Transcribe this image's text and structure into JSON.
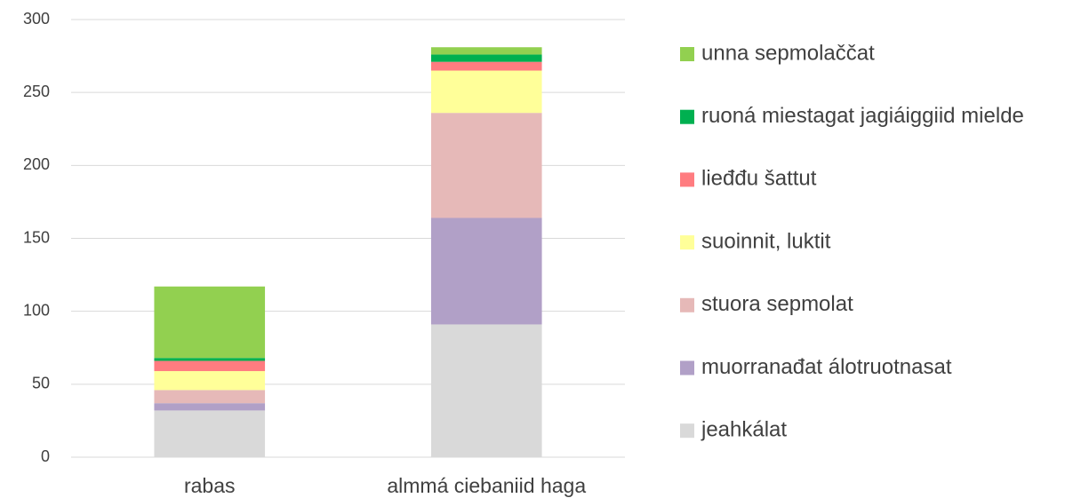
{
  "chart_data": {
    "type": "stacked_bar",
    "categories": [
      "rabas",
      "almmá ciebaniid haga"
    ],
    "series": [
      {
        "name": "jeahkálat",
        "color": "#d9d9d9",
        "values": [
          32,
          91
        ]
      },
      {
        "name": "muorranađat álotruotnasat",
        "color": "#b1a0c7",
        "values": [
          5,
          73
        ]
      },
      {
        "name": "stuora sepmolat",
        "color": "#e6b9b8",
        "values": [
          9,
          72
        ]
      },
      {
        "name": "suoinnit, luktit",
        "color": "#ffff99",
        "values": [
          13,
          29
        ]
      },
      {
        "name": "lieđđu šattut",
        "color": "#ff7c80",
        "values": [
          7,
          6
        ]
      },
      {
        "name": "ruoná miestagat jagiáiggiid mielde",
        "color": "#00b050",
        "values": [
          2,
          5
        ]
      },
      {
        "name": "unna sepmolaččat",
        "color": "#92d050",
        "values": [
          49,
          5
        ]
      }
    ],
    "ylim": [
      0,
      300
    ],
    "yticks": [
      0,
      50,
      100,
      150,
      200,
      250,
      300
    ],
    "grid": true,
    "legend": "right"
  }
}
